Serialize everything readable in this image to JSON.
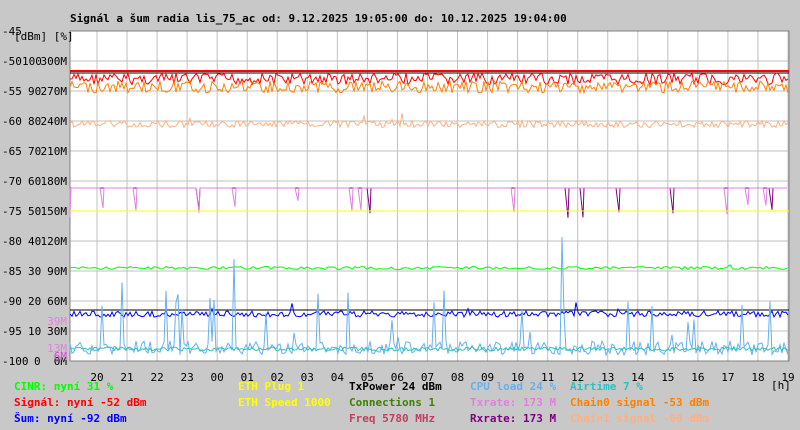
{
  "chart_data": {
    "type": "line",
    "title": "Signál a šum radia lis_75_ac od: 9.12.2025 19:05:00 do: 10.12.2025 19:04:00",
    "ylabel": "[dBm] [%]",
    "xlabel": "[h]",
    "ylim_dbm": [
      -100,
      -45
    ],
    "ylim_percent": [
      0,
      100
    ],
    "ylim_rate_M": [
      0,
      300
    ],
    "y_ticks_dbm": [
      "-45",
      "-50",
      "-55",
      "-60",
      "-65",
      "-70",
      "-75",
      "-80",
      "-85",
      "-90",
      "-95",
      "-100"
    ],
    "y_ticks_percent": [
      "100",
      "90",
      "80",
      "70",
      "60",
      "50",
      "40",
      "30",
      "20",
      "10",
      "0"
    ],
    "y_ticks_rate": [
      "300M",
      "270M",
      "240M",
      "210M",
      "180M",
      "150M",
      "120M",
      "90M",
      "60M",
      "30M",
      "0M"
    ],
    "y_ticks_small": [
      "39M",
      "13M",
      "6M"
    ],
    "x_ticks": [
      "20",
      "21",
      "22",
      "23",
      "00",
      "01",
      "02",
      "03",
      "04",
      "05",
      "06",
      "07",
      "08",
      "09",
      "10",
      "11",
      "12",
      "13",
      "14",
      "15",
      "16",
      "17",
      "18",
      "19"
    ],
    "series": [
      {
        "name": "Signál",
        "color": "#ff0000",
        "level_dbm": -52,
        "values": [
          -52,
          -52,
          -52,
          -52,
          -52,
          -52,
          -52,
          -52,
          -52,
          -52,
          -52,
          -52,
          -52,
          -52,
          -52,
          -52,
          -52,
          -52,
          -52,
          -52,
          -52,
          -52,
          -52,
          -52
        ]
      },
      {
        "name": "Chain0 signal",
        "color": "#ff8000",
        "level_dbm": -53,
        "values": [
          -53,
          -53,
          -53,
          -53,
          -53,
          -53,
          -53,
          -53,
          -53,
          -53,
          -53,
          -53,
          -53,
          -53,
          -53,
          -53,
          -53,
          -53,
          -53,
          -53,
          -53,
          -53,
          -53,
          -53
        ]
      },
      {
        "name": "Chain1 signal",
        "color": "#ffb080",
        "level_dbm": -60,
        "values": [
          -60,
          -60,
          -60,
          -60,
          -60,
          -60,
          -60,
          -60,
          -60,
          -60,
          -60,
          -60,
          -60,
          -60,
          -60,
          -60,
          -60,
          -60,
          -60,
          -60,
          -60,
          -60,
          -60,
          -60
        ]
      },
      {
        "name": "Rxrate",
        "color": "#800080",
        "level_M": 173,
        "values": [
          173,
          173,
          173,
          173,
          173,
          173,
          173,
          173,
          173,
          173,
          173,
          173,
          173,
          173,
          173,
          173,
          173,
          173,
          173,
          173,
          173,
          173,
          173,
          173
        ]
      },
      {
        "name": "Txrate",
        "color": "#e080e0",
        "level_M": 173,
        "values": [
          173,
          173,
          173,
          173,
          173,
          173,
          173,
          173,
          173,
          173,
          173,
          173,
          173,
          173,
          173,
          173,
          173,
          173,
          173,
          173,
          173,
          173,
          173,
          173
        ]
      },
      {
        "name": "ETH Speed",
        "color": "#ffff00",
        "level_M": 150,
        "values": [
          150,
          150,
          150,
          150,
          150,
          150,
          150,
          150,
          150,
          150,
          150,
          150,
          150,
          150,
          150,
          150,
          150,
          150,
          150,
          150,
          150,
          150,
          150,
          150
        ]
      },
      {
        "name": "CINR",
        "color": "#00ff00",
        "level_percent": 31,
        "values": [
          31,
          31,
          31,
          31,
          31,
          31,
          31,
          31,
          31,
          31,
          31,
          31,
          31,
          31,
          31,
          31,
          31,
          31,
          31,
          31,
          31,
          31,
          31,
          31
        ]
      },
      {
        "name": "Šum",
        "color": "#0000ff",
        "level_dbm": -92,
        "values": [
          -92,
          -92,
          -92,
          -92,
          -92,
          -92,
          -92,
          -92,
          -92,
          -92,
          -92,
          -92,
          -92,
          -92,
          -92,
          -92,
          -92,
          -92,
          -92,
          -92,
          -92,
          -92,
          -92,
          -92
        ]
      },
      {
        "name": "CPU load",
        "color": "#66b0f0",
        "level_percent": 24,
        "values": [
          4,
          6,
          3,
          5,
          4,
          3,
          4,
          5,
          6,
          4,
          5,
          6,
          8,
          5,
          4,
          6,
          5,
          9,
          7,
          8,
          6,
          9,
          7,
          24
        ]
      },
      {
        "name": "Airtime",
        "color": "#30c0c0",
        "level_percent": 7,
        "values": [
          5,
          5,
          5,
          5,
          5,
          5,
          5,
          5,
          5,
          5,
          5,
          5,
          5,
          5,
          5,
          5,
          5,
          5,
          5,
          5,
          5,
          5,
          5,
          7
        ]
      }
    ],
    "reference_lines_dbm": [
      -52,
      -91.5
    ],
    "legend": [
      {
        "label": "CINR: nyní 31 %",
        "color": "#00ff00"
      },
      {
        "label": "Signál: nyní -52 dBm",
        "color": "#ff0000"
      },
      {
        "label": "Šum: nyní -92 dBm",
        "color": "#0000ff"
      },
      {
        "label": "ETH Plug 1",
        "color": "#ffff00"
      },
      {
        "label": "ETH Speed 1000",
        "color": "#ffff00"
      },
      {
        "label": "TxPower 24 dBm",
        "color": "#000000"
      },
      {
        "label": "Connections 1",
        "color": "#408000"
      },
      {
        "label": "Freq 5780 MHz",
        "color": "#c04060"
      },
      {
        "label": "CPU load 24 %",
        "color": "#66b0f0"
      },
      {
        "label": "Txrate: 173 M",
        "color": "#e080e0"
      },
      {
        "label": "Rxrate: 173 M",
        "color": "#800080"
      },
      {
        "label": "Airtime 7 %",
        "color": "#30c0c0"
      },
      {
        "label": "Chain0 signal -53 dBm",
        "color": "#ff8000"
      },
      {
        "label": "Chain1 signal -60 dBm",
        "color": "#ffb080"
      }
    ],
    "grid": true,
    "legend_position": "bottom"
  }
}
